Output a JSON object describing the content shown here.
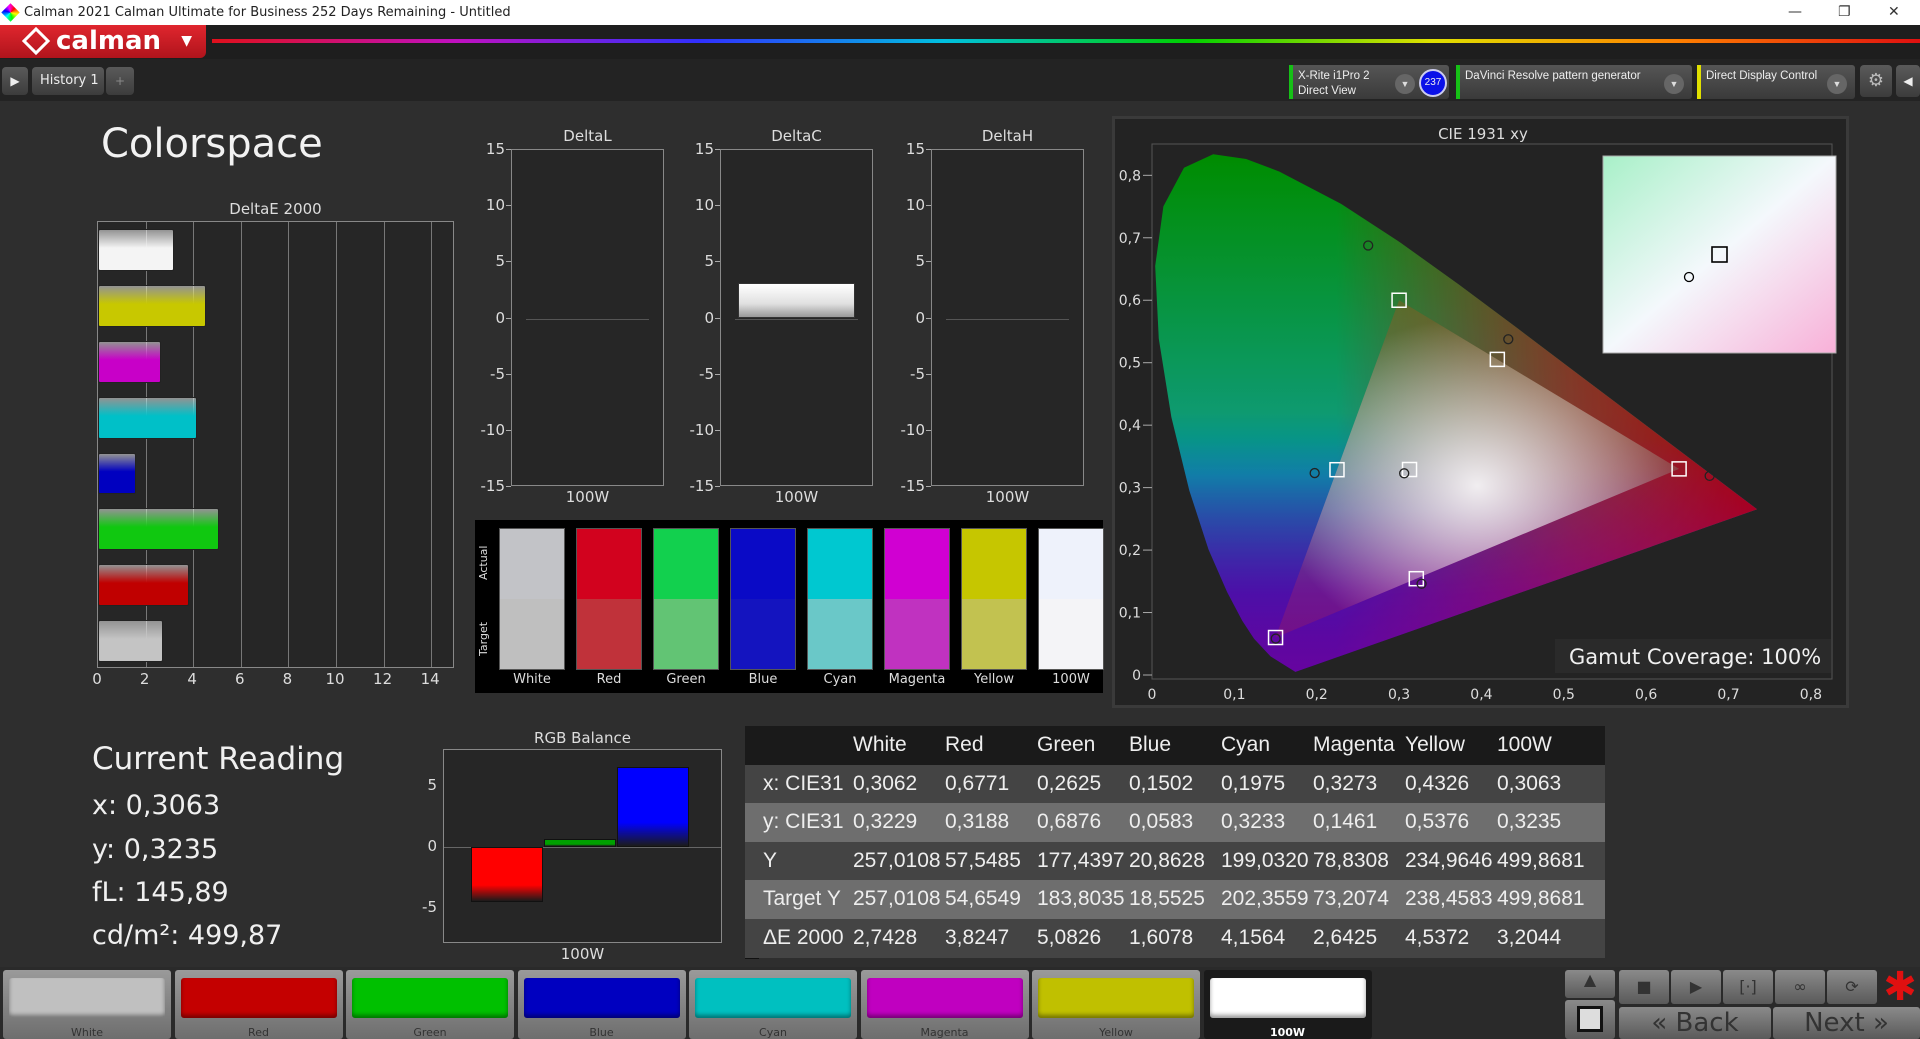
{
  "window": {
    "title": "Calman 2021 Calman Ultimate for Business 252 Days Remaining  - Untitled",
    "min": "—",
    "restore": "❐",
    "close": "✕"
  },
  "logo": "calman",
  "toolbar": {
    "history_tab": "History 1",
    "add_tab": "+",
    "meter_line1": "X-Rite i1Pro 2",
    "meter_line2": "Direct View",
    "meter_badge": "237",
    "pattern": "DaVinci Resolve pattern generator",
    "display": "Direct Display Control",
    "colors": {
      "meter": "#16c016",
      "pattern": "#16c016",
      "display": "#e0e000"
    }
  },
  "page_title": "Colorspace",
  "patches": [
    {
      "name": "White",
      "actual": "#c2c3c7",
      "target": "#bfbfbf",
      "button": "#c0c0c0"
    },
    {
      "name": "Red",
      "actual": "#d2021e",
      "target": "#c0323a",
      "button": "#c40000"
    },
    {
      "name": "Green",
      "actual": "#12d04e",
      "target": "#62c474",
      "button": "#00c000"
    },
    {
      "name": "Blue",
      "actual": "#0a0ac6",
      "target": "#1414bf",
      "button": "#0000c0"
    },
    {
      "name": "Cyan",
      "actual": "#00c8d0",
      "target": "#6ac8c8",
      "button": "#00c0c0"
    },
    {
      "name": "Magenta",
      "actual": "#d000d2",
      "target": "#c032c0",
      "button": "#c000c0"
    },
    {
      "name": "Yellow",
      "actual": "#c6c600",
      "target": "#c2c250",
      "button": "#c0c000"
    },
    {
      "name": "100W",
      "actual": "#eef2fb",
      "target": "#f4f4f7",
      "button": "#ffffff"
    }
  ],
  "swatch_panel": {
    "actual_label": "Actual",
    "target_label": "Target"
  },
  "current_reading": {
    "title": "Current Reading",
    "x": "x: 0,3063",
    "y": "y: 0,3235",
    "fl": "fL: 145,89",
    "cdm2": "cd/m²: 499,87"
  },
  "gamut_coverage": "Gamut Coverage:  100%",
  "table": {
    "headers": [
      "",
      "White",
      "Red",
      "Green",
      "Blue",
      "Cyan",
      "Magenta",
      "Yellow",
      "100W"
    ],
    "rows": [
      [
        "x: CIE31",
        "0,3062",
        "0,6771",
        "0,2625",
        "0,1502",
        "0,1975",
        "0,3273",
        "0,4326",
        "0,3063"
      ],
      [
        "y: CIE31",
        "0,3229",
        "0,3188",
        "0,6876",
        "0,0583",
        "0,3233",
        "0,1461",
        "0,5376",
        "0,3235"
      ],
      [
        "Y",
        "257,0108",
        "57,5485",
        "177,4397",
        "20,8628",
        "199,0320",
        "78,8308",
        "234,9646",
        "499,8681"
      ],
      [
        "Target Y",
        "257,0108",
        "54,6549",
        "183,8035",
        "18,5525",
        "202,3559",
        "73,2074",
        "238,4583",
        "499,8681"
      ],
      [
        "ΔE 2000",
        "2,7428",
        "3,8247",
        "5,0826",
        "1,6078",
        "4,1564",
        "2,6425",
        "4,5372",
        "3,2044"
      ]
    ]
  },
  "bottom": {
    "back": "Back",
    "next": "Next",
    "back_icon": "«",
    "next_icon": "»"
  },
  "chart_data": [
    {
      "type": "bar",
      "orientation": "horizontal",
      "title": "DeltaE 2000",
      "categories": [
        "100W",
        "Yellow",
        "Magenta",
        "Cyan",
        "Blue",
        "Green",
        "Red",
        "White"
      ],
      "values": [
        3.2044,
        4.5372,
        2.6425,
        4.1564,
        1.6078,
        5.0826,
        3.8247,
        2.7428
      ],
      "colors": [
        "#f4f4f4",
        "#c8c800",
        "#c800c8",
        "#00c0c8",
        "#0000c0",
        "#10c810",
        "#c00000",
        "#c4c4c4"
      ],
      "xlim": [
        0,
        15
      ],
      "xticks": [
        0,
        2,
        4,
        6,
        8,
        10,
        12,
        14
      ],
      "grid": true
    },
    {
      "type": "bar",
      "title": "DeltaL",
      "categories": [
        "100W"
      ],
      "values": [
        0
      ],
      "ylim": [
        -15,
        15
      ],
      "yticks": [
        15,
        10,
        5,
        0,
        -5,
        -10,
        -15
      ]
    },
    {
      "type": "bar",
      "title": "DeltaC",
      "categories": [
        "100W"
      ],
      "values": [
        3.2
      ],
      "ylim": [
        -15,
        15
      ],
      "yticks": [
        15,
        10,
        5,
        0,
        -5,
        -10,
        -15
      ]
    },
    {
      "type": "bar",
      "title": "DeltaH",
      "categories": [
        "100W"
      ],
      "values": [
        0
      ],
      "ylim": [
        -15,
        15
      ],
      "yticks": [
        15,
        10,
        5,
        0,
        -5,
        -10,
        -15
      ]
    },
    {
      "type": "scatter",
      "title": "CIE 1931 xy",
      "xlim": [
        0,
        0.8
      ],
      "ylim": [
        0,
        0.8
      ],
      "xticks": [
        "0",
        "0,1",
        "0,2",
        "0,3",
        "0,4",
        "0,5",
        "0,6",
        "0,7",
        "0,8"
      ],
      "yticks": [
        "0",
        "0,1",
        "0,2",
        "0,3",
        "0,4",
        "0,5",
        "0,6",
        "0,7",
        "0,8"
      ],
      "targets": [
        {
          "name": "White",
          "x": 0.3127,
          "y": 0.329
        },
        {
          "name": "Red",
          "x": 0.64,
          "y": 0.33
        },
        {
          "name": "Green",
          "x": 0.3,
          "y": 0.6
        },
        {
          "name": "Blue",
          "x": 0.15,
          "y": 0.06
        },
        {
          "name": "Cyan",
          "x": 0.2246,
          "y": 0.3287
        },
        {
          "name": "Magenta",
          "x": 0.3209,
          "y": 0.1542
        },
        {
          "name": "Yellow",
          "x": 0.4193,
          "y": 0.5053
        }
      ],
      "measured": [
        {
          "name": "White",
          "x": 0.3062,
          "y": 0.3229
        },
        {
          "name": "Red",
          "x": 0.6771,
          "y": 0.3188
        },
        {
          "name": "Green",
          "x": 0.2625,
          "y": 0.6876
        },
        {
          "name": "Blue",
          "x": 0.1502,
          "y": 0.0583
        },
        {
          "name": "Cyan",
          "x": 0.1975,
          "y": 0.3233
        },
        {
          "name": "Magenta",
          "x": 0.3273,
          "y": 0.1461
        },
        {
          "name": "Yellow",
          "x": 0.4326,
          "y": 0.5376
        }
      ]
    },
    {
      "type": "bar",
      "title": "RGB Balance",
      "categories": [
        "100W"
      ],
      "series": [
        {
          "color": "#ff0000",
          "values": [
            -4.5
          ]
        },
        {
          "color": "#00a000",
          "values": [
            0.7
          ]
        },
        {
          "color": "#0000ff",
          "values": [
            6.6
          ]
        }
      ],
      "ylim": [
        -8,
        8
      ],
      "yticks": [
        5,
        0,
        -5
      ]
    }
  ]
}
